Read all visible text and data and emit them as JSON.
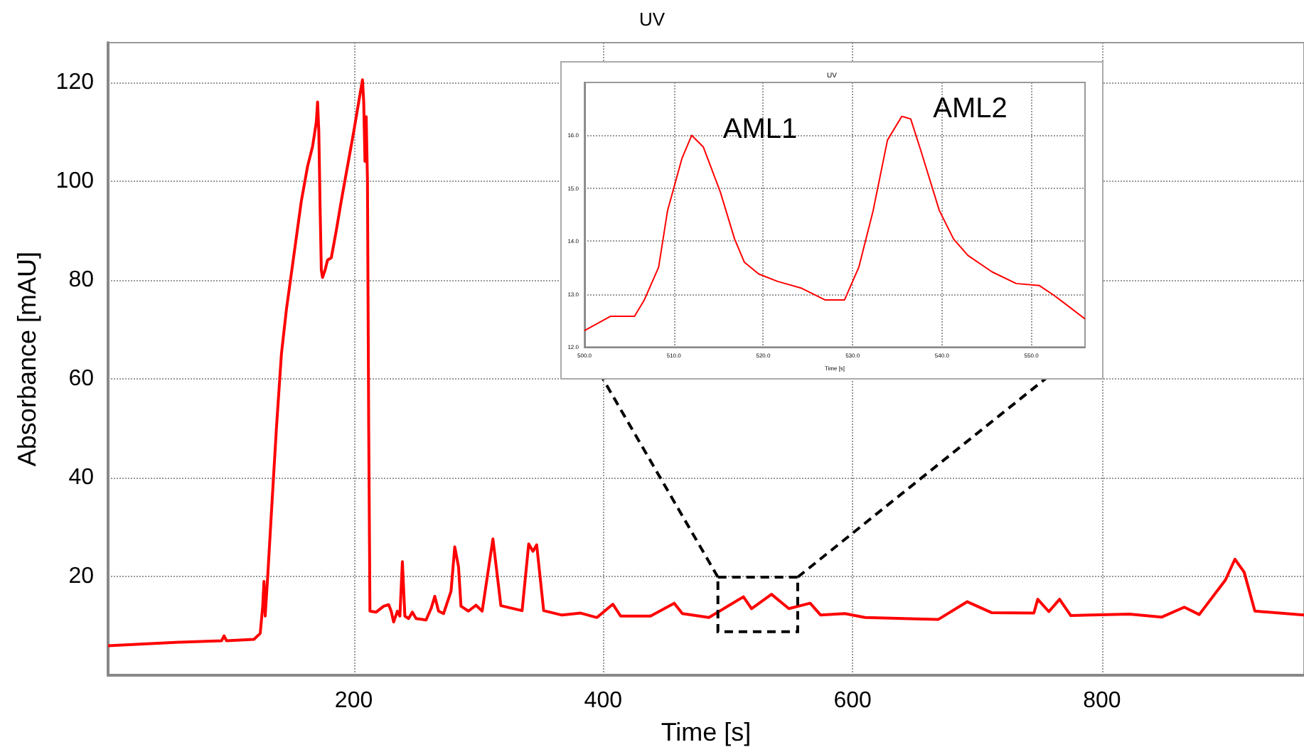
{
  "chart_data": [
    {
      "type": "line",
      "title": "UV",
      "xlabel": "Time [s]",
      "ylabel": "Absorbance [mAU]",
      "xlim": [
        3,
        962
      ],
      "ylim": [
        0,
        128
      ],
      "xticks": [
        200,
        400,
        600,
        800
      ],
      "yticks": [
        20,
        40,
        60,
        80,
        100,
        120
      ],
      "grid": true,
      "x": [
        3,
        60,
        94,
        96,
        98,
        120,
        125,
        127,
        128,
        129,
        131,
        134,
        138,
        142,
        146,
        152,
        158,
        163,
        167,
        170,
        171,
        172,
        173,
        174,
        175,
        177,
        179,
        182,
        186,
        190,
        195,
        200,
        204,
        206,
        207,
        208,
        209,
        210,
        211,
        212,
        213,
        218,
        224,
        228,
        230,
        232,
        235,
        237,
        239,
        241,
        244,
        247,
        250,
        258,
        262,
        265,
        268,
        272,
        278,
        281,
        284,
        286,
        292,
        298,
        303,
        311.6,
        318,
        335,
        340.3,
        343.7,
        346.7,
        352.3,
        367,
        382,
        395,
        407.8,
        414,
        438,
        457,
        463.5,
        484.8,
        512.5,
        519,
        535,
        548.9,
        566,
        574.4,
        593.8,
        610,
        668.6,
        692,
        711.4,
        745.4,
        748.5,
        757.4,
        766,
        775,
        822,
        848,
        866,
        878,
        899,
        906.6,
        914,
        922.6,
        962
      ],
      "series": [
        {
          "color": "#ff0000",
          "values": [
            6,
            6.7,
            7,
            8,
            7,
            7.3,
            8.5,
            14,
            19,
            12,
            20,
            33,
            50,
            65,
            74,
            85,
            96,
            103,
            107,
            112,
            116,
            110,
            95,
            82,
            80.5,
            82,
            84,
            84.5,
            90,
            96,
            103,
            110,
            116,
            119,
            120.5,
            116,
            104,
            113,
            100,
            50,
            13,
            12.8,
            14,
            14.3,
            13,
            10.8,
            13,
            12,
            23,
            12,
            11.5,
            12.8,
            11.5,
            11.2,
            13.5,
            16,
            13,
            12.5,
            17,
            26,
            22,
            14,
            13,
            14.2,
            13,
            27.6,
            14.1,
            13.1,
            26.6,
            25.1,
            26.4,
            13.1,
            12.2,
            12.6,
            11.7,
            14.4,
            12,
            12,
            14.6,
            12.5,
            11.7,
            15.9,
            13.5,
            16.4,
            13.5,
            14.6,
            12.2,
            12.5,
            11.7,
            11.3,
            14.9,
            12.7,
            12.6,
            15.4,
            12.9,
            15.4,
            12.1,
            12.4,
            11.8,
            13.8,
            12.3,
            19.3,
            23.5,
            20.9,
            13,
            12.2
          ]
        }
      ]
    },
    {
      "type": "line",
      "title": "UV",
      "xlabel": "Time [s]",
      "xlim": [
        500,
        556
      ],
      "ylim": [
        12,
        17
      ],
      "xticks": [
        {
          "value": 500,
          "label": "500.0"
        },
        {
          "value": 510,
          "label": "510.0"
        },
        {
          "value": 520,
          "label": "520.0"
        },
        {
          "value": 530,
          "label": "530.0"
        },
        {
          "value": 540,
          "label": "540.0"
        },
        {
          "value": 550,
          "label": "550.0"
        }
      ],
      "yticks": [
        {
          "value": 12,
          "label": "12.0"
        },
        {
          "value": 13,
          "label": "13.0"
        },
        {
          "value": 14,
          "label": "14.0"
        },
        {
          "value": 15,
          "label": "15.0"
        },
        {
          "value": 16,
          "label": "16.0"
        }
      ],
      "grid": true,
      "annotations": [
        {
          "text": "AML1",
          "x": 512,
          "y": 16
        },
        {
          "text": "AML2",
          "x": 535.5,
          "y": 16.4
        }
      ],
      "x": [
        500,
        502.9,
        505.6,
        506.7,
        508.3,
        509.3,
        510.9,
        512,
        513.3,
        515.2,
        516.8,
        517.9,
        519.5,
        521.6,
        524.3,
        526.9,
        529.1,
        530.7,
        532.3,
        533.9,
        535.5,
        536.5,
        537.6,
        539.7,
        541.3,
        542.9,
        545.6,
        548.3,
        550.9,
        552.5,
        553.6,
        556
      ],
      "series": [
        {
          "color": "#ff0000",
          "values": [
            12.31,
            12.58,
            12.58,
            12.89,
            13.51,
            14.58,
            15.56,
            16,
            15.78,
            14.93,
            14.04,
            13.6,
            13.38,
            13.24,
            13.11,
            12.89,
            12.89,
            13.51,
            14.58,
            15.91,
            16.36,
            16.31,
            15.73,
            14.58,
            14.04,
            13.73,
            13.42,
            13.2,
            13.16,
            12.98,
            12.84,
            12.53
          ]
        }
      ]
    }
  ]
}
